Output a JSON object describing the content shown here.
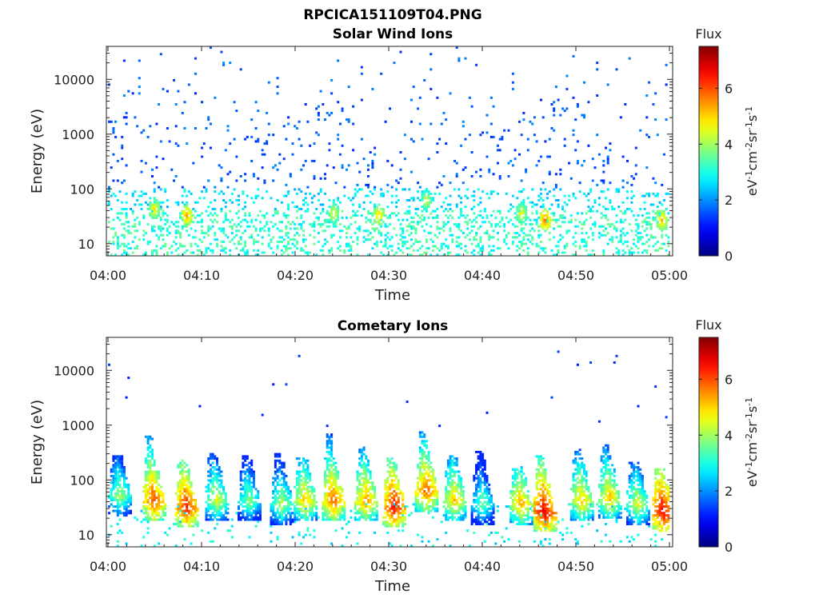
{
  "figure": {
    "title": "RPCICA151109T04.PNG"
  },
  "chart_data": [
    {
      "type": "heatmap",
      "title": "Solar Wind Ions",
      "xlabel": "Time",
      "ylabel": "Energy (eV)",
      "x_ticks": [
        "04:00",
        "04:10",
        "04:20",
        "04:30",
        "04:40",
        "04:50",
        "05:00"
      ],
      "xlim": [
        "04:00",
        "05:00"
      ],
      "y_ticks": [
        "10",
        "100",
        "1000",
        "10000"
      ],
      "y_scale": "log",
      "ylim": [
        6,
        40000
      ],
      "colorbar": {
        "title": "Flux",
        "label": "eV-1cm-2sr-1s-1",
        "range": [
          0,
          7.5
        ],
        "ticks": [
          "0",
          "2",
          "4",
          "6"
        ],
        "colormap": "jet"
      },
      "description_level": "sparse blue (flux 1-2) points across 200-30000 eV; cyan-green (2.5-4) bands 10-100 eV; localized yellow/orange patches (4.5-6) near 20-40 eV at ~04:05, 04:08, 04:24, 04:29, 04:34, 04:44, 04:46, 04:59",
      "hotspots": [
        {
          "time_min": 4.8,
          "energy_ev": 40,
          "flux": 5.0
        },
        {
          "time_min": 8.2,
          "energy_ev": 30,
          "flux": 5.5
        },
        {
          "time_min": 24.1,
          "energy_ev": 35,
          "flux": 4.8
        },
        {
          "time_min": 28.8,
          "energy_ev": 30,
          "flux": 5.2
        },
        {
          "time_min": 34.0,
          "energy_ev": 60,
          "flux": 4.6
        },
        {
          "time_min": 44.0,
          "energy_ev": 35,
          "flux": 4.8
        },
        {
          "time_min": 46.5,
          "energy_ev": 25,
          "flux": 5.8
        },
        {
          "time_min": 59.0,
          "energy_ev": 25,
          "flux": 5.3
        }
      ]
    },
    {
      "type": "heatmap",
      "title": "Cometary Ions",
      "xlabel": "Time",
      "ylabel": "Energy (eV)",
      "x_ticks": [
        "04:00",
        "04:10",
        "04:20",
        "04:30",
        "04:40",
        "04:50",
        "05:00"
      ],
      "xlim": [
        "04:00",
        "05:00"
      ],
      "y_ticks": [
        "10",
        "100",
        "1000",
        "10000"
      ],
      "y_scale": "log",
      "ylim": [
        6,
        40000
      ],
      "colorbar": {
        "title": "Flux",
        "label": "eV-1cm-2sr-1s-1",
        "range": [
          0,
          7.5
        ],
        "ticks": [
          "0",
          "2",
          "4",
          "6"
        ],
        "colormap": "jet"
      },
      "bursts": [
        {
          "time_min": 1.2,
          "energy_ev": 50,
          "flux": 4.2
        },
        {
          "time_min": 4.8,
          "energy_ev": 40,
          "flux": 6.2
        },
        {
          "time_min": 8.3,
          "energy_ev": 30,
          "flux": 6.5
        },
        {
          "time_min": 11.5,
          "energy_ev": 40,
          "flux": 4.6
        },
        {
          "time_min": 15.0,
          "energy_ev": 40,
          "flux": 4.0
        },
        {
          "time_min": 18.5,
          "energy_ev": 35,
          "flux": 4.3
        },
        {
          "time_min": 21.0,
          "energy_ev": 40,
          "flux": 5.2
        },
        {
          "time_min": 24.0,
          "energy_ev": 40,
          "flux": 6.0
        },
        {
          "time_min": 27.5,
          "energy_ev": 40,
          "flux": 5.6
        },
        {
          "time_min": 30.5,
          "energy_ev": 30,
          "flux": 6.6
        },
        {
          "time_min": 34.0,
          "energy_ev": 60,
          "flux": 6.0
        },
        {
          "time_min": 37.0,
          "energy_ev": 40,
          "flux": 5.2
        },
        {
          "time_min": 40.0,
          "energy_ev": 35,
          "flux": 3.8
        },
        {
          "time_min": 44.0,
          "energy_ev": 35,
          "flux": 5.4
        },
        {
          "time_min": 46.5,
          "energy_ev": 25,
          "flux": 6.8
        },
        {
          "time_min": 50.5,
          "energy_ev": 40,
          "flux": 5.2
        },
        {
          "time_min": 53.5,
          "energy_ev": 45,
          "flux": 5.2
        },
        {
          "time_min": 56.5,
          "energy_ev": 35,
          "flux": 4.6
        },
        {
          "time_min": 59.2,
          "energy_ev": 25,
          "flux": 6.8
        }
      ]
    }
  ]
}
